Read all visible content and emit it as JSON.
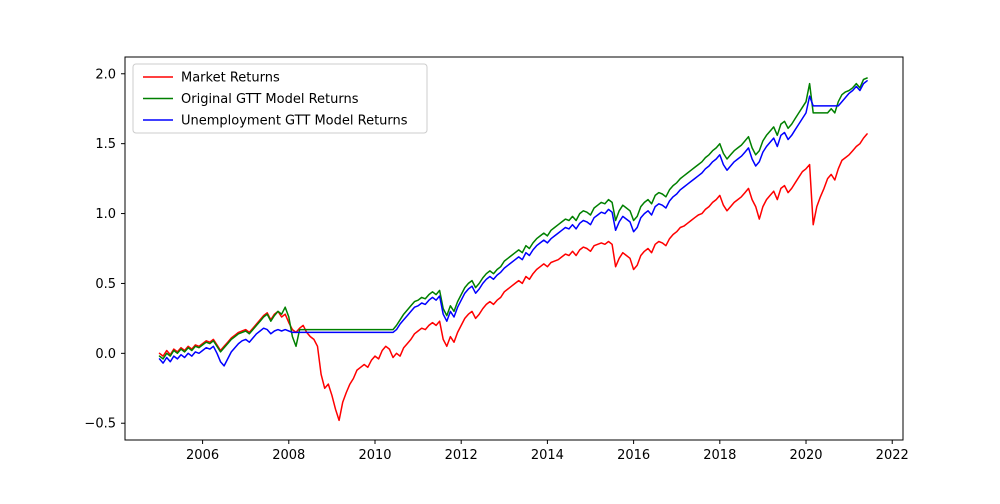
{
  "figure": {
    "background": "#ffffff",
    "axes_edge_color": "#000000",
    "tick_color": "#000000",
    "text_color": "#000000"
  },
  "chart_data": {
    "type": "line",
    "title": "",
    "xlabel": "",
    "ylabel": "",
    "grid": false,
    "xlim": [
      2004.2,
      2022.25
    ],
    "ylim": [
      -0.62,
      2.12
    ],
    "xticks": [
      2006,
      2008,
      2010,
      2012,
      2014,
      2016,
      2018,
      2020,
      2022
    ],
    "x_tick_labels": [
      "2006",
      "2008",
      "2010",
      "2012",
      "2014",
      "2016",
      "2018",
      "2020",
      "2022"
    ],
    "yticks": [
      -0.5,
      0.0,
      0.5,
      1.0,
      1.5,
      2.0
    ],
    "y_tick_labels": [
      "−0.5",
      "0.0",
      "0.5",
      "1.0",
      "1.5",
      "2.0"
    ],
    "legend": {
      "position": "upper-left",
      "background": "#ffffff",
      "border_color": "#cccccc",
      "labels": [
        "Market Returns",
        "Original GTT Model Returns",
        "Unemployment GTT Model Returns"
      ]
    },
    "series": [
      {
        "id": "market-returns",
        "name": "Market Returns",
        "color": "#ff0000",
        "x_start": 2005.0,
        "x_step": 0.0833333,
        "values": [
          0.0,
          -0.02,
          0.02,
          -0.01,
          0.03,
          0.01,
          0.04,
          0.02,
          0.05,
          0.03,
          0.06,
          0.05,
          0.07,
          0.09,
          0.08,
          0.1,
          0.06,
          0.02,
          0.05,
          0.08,
          0.11,
          0.13,
          0.15,
          0.16,
          0.17,
          0.15,
          0.18,
          0.21,
          0.24,
          0.27,
          0.29,
          0.24,
          0.28,
          0.3,
          0.26,
          0.28,
          0.22,
          0.17,
          0.15,
          0.18,
          0.2,
          0.15,
          0.12,
          0.1,
          0.05,
          -0.15,
          -0.25,
          -0.22,
          -0.3,
          -0.4,
          -0.48,
          -0.35,
          -0.28,
          -0.22,
          -0.18,
          -0.12,
          -0.1,
          -0.08,
          -0.1,
          -0.05,
          -0.02,
          -0.04,
          0.02,
          0.05,
          0.03,
          -0.03,
          0.0,
          -0.02,
          0.04,
          0.07,
          0.1,
          0.14,
          0.16,
          0.18,
          0.17,
          0.2,
          0.22,
          0.2,
          0.23,
          0.1,
          0.05,
          0.12,
          0.08,
          0.15,
          0.2,
          0.25,
          0.28,
          0.3,
          0.25,
          0.28,
          0.32,
          0.35,
          0.37,
          0.35,
          0.38,
          0.4,
          0.44,
          0.46,
          0.48,
          0.5,
          0.52,
          0.5,
          0.55,
          0.53,
          0.57,
          0.6,
          0.62,
          0.64,
          0.62,
          0.65,
          0.66,
          0.67,
          0.69,
          0.71,
          0.7,
          0.73,
          0.7,
          0.74,
          0.76,
          0.75,
          0.73,
          0.77,
          0.78,
          0.79,
          0.78,
          0.8,
          0.78,
          0.62,
          0.68,
          0.72,
          0.7,
          0.68,
          0.6,
          0.63,
          0.7,
          0.73,
          0.75,
          0.72,
          0.78,
          0.8,
          0.79,
          0.77,
          0.82,
          0.85,
          0.87,
          0.9,
          0.91,
          0.93,
          0.95,
          0.97,
          0.99,
          1.0,
          1.03,
          1.05,
          1.08,
          1.1,
          1.13,
          1.06,
          1.02,
          1.05,
          1.08,
          1.1,
          1.12,
          1.15,
          1.18,
          1.1,
          1.05,
          0.96,
          1.05,
          1.1,
          1.13,
          1.16,
          1.1,
          1.18,
          1.2,
          1.15,
          1.18,
          1.22,
          1.26,
          1.3,
          1.32,
          1.35,
          0.92,
          1.05,
          1.12,
          1.18,
          1.25,
          1.28,
          1.24,
          1.32,
          1.38,
          1.4,
          1.42,
          1.45,
          1.48,
          1.5,
          1.54,
          1.57
        ]
      },
      {
        "id": "original-gtt",
        "name": "Original GTT Model Returns",
        "color": "#008000",
        "x_start": 2005.0,
        "x_step": 0.0833333,
        "values": [
          -0.02,
          -0.04,
          0.0,
          -0.02,
          0.02,
          0.0,
          0.03,
          0.01,
          0.04,
          0.02,
          0.05,
          0.04,
          0.06,
          0.08,
          0.07,
          0.09,
          0.05,
          0.01,
          0.04,
          0.07,
          0.1,
          0.12,
          0.14,
          0.15,
          0.16,
          0.14,
          0.17,
          0.2,
          0.23,
          0.26,
          0.28,
          0.23,
          0.27,
          0.3,
          0.28,
          0.33,
          0.26,
          0.12,
          0.05,
          0.17,
          0.17,
          0.17,
          0.17,
          0.17,
          0.17,
          0.17,
          0.17,
          0.17,
          0.17,
          0.17,
          0.17,
          0.17,
          0.17,
          0.17,
          0.17,
          0.17,
          0.17,
          0.17,
          0.17,
          0.17,
          0.17,
          0.17,
          0.17,
          0.17,
          0.17,
          0.17,
          0.2,
          0.24,
          0.28,
          0.31,
          0.34,
          0.37,
          0.38,
          0.4,
          0.39,
          0.42,
          0.44,
          0.42,
          0.45,
          0.32,
          0.27,
          0.34,
          0.3,
          0.37,
          0.42,
          0.47,
          0.5,
          0.52,
          0.47,
          0.5,
          0.54,
          0.57,
          0.59,
          0.57,
          0.6,
          0.62,
          0.66,
          0.68,
          0.7,
          0.72,
          0.74,
          0.72,
          0.77,
          0.75,
          0.79,
          0.82,
          0.84,
          0.86,
          0.84,
          0.88,
          0.9,
          0.92,
          0.94,
          0.96,
          0.95,
          0.98,
          0.95,
          1.0,
          1.02,
          1.01,
          0.99,
          1.04,
          1.06,
          1.08,
          1.07,
          1.1,
          1.08,
          0.95,
          1.02,
          1.06,
          1.04,
          1.02,
          0.95,
          0.98,
          1.05,
          1.08,
          1.1,
          1.07,
          1.13,
          1.15,
          1.14,
          1.12,
          1.17,
          1.2,
          1.22,
          1.25,
          1.27,
          1.29,
          1.31,
          1.33,
          1.35,
          1.37,
          1.4,
          1.42,
          1.45,
          1.47,
          1.5,
          1.43,
          1.39,
          1.42,
          1.45,
          1.47,
          1.49,
          1.52,
          1.55,
          1.47,
          1.42,
          1.45,
          1.52,
          1.56,
          1.59,
          1.62,
          1.56,
          1.64,
          1.66,
          1.61,
          1.64,
          1.68,
          1.72,
          1.76,
          1.8,
          1.93,
          1.72,
          1.72,
          1.72,
          1.72,
          1.72,
          1.75,
          1.72,
          1.8,
          1.85,
          1.87,
          1.88,
          1.9,
          1.93,
          1.9,
          1.96,
          1.97
        ]
      },
      {
        "id": "unemployment-gtt",
        "name": "Unemployment GTT Model Returns",
        "color": "#0000ff",
        "x_start": 2005.0,
        "x_step": 0.0833333,
        "values": [
          -0.04,
          -0.07,
          -0.03,
          -0.06,
          -0.02,
          -0.04,
          -0.01,
          -0.03,
          0.0,
          -0.02,
          0.01,
          0.0,
          0.02,
          0.04,
          0.03,
          0.05,
          0.0,
          -0.06,
          -0.09,
          -0.04,
          0.01,
          0.04,
          0.07,
          0.09,
          0.1,
          0.08,
          0.11,
          0.14,
          0.16,
          0.18,
          0.17,
          0.14,
          0.16,
          0.17,
          0.16,
          0.17,
          0.16,
          0.15,
          0.15,
          0.15,
          0.15,
          0.15,
          0.15,
          0.15,
          0.15,
          0.15,
          0.15,
          0.15,
          0.15,
          0.15,
          0.15,
          0.15,
          0.15,
          0.15,
          0.15,
          0.15,
          0.15,
          0.15,
          0.15,
          0.15,
          0.15,
          0.15,
          0.15,
          0.15,
          0.15,
          0.15,
          0.17,
          0.21,
          0.24,
          0.27,
          0.3,
          0.33,
          0.34,
          0.36,
          0.35,
          0.38,
          0.4,
          0.38,
          0.41,
          0.28,
          0.23,
          0.3,
          0.26,
          0.33,
          0.38,
          0.43,
          0.46,
          0.48,
          0.43,
          0.46,
          0.5,
          0.53,
          0.55,
          0.53,
          0.56,
          0.58,
          0.61,
          0.63,
          0.65,
          0.67,
          0.69,
          0.67,
          0.72,
          0.7,
          0.74,
          0.77,
          0.79,
          0.81,
          0.79,
          0.82,
          0.84,
          0.86,
          0.88,
          0.9,
          0.89,
          0.92,
          0.89,
          0.93,
          0.95,
          0.94,
          0.92,
          0.97,
          0.99,
          1.01,
          1.0,
          1.03,
          1.01,
          0.88,
          0.94,
          0.98,
          0.96,
          0.94,
          0.87,
          0.9,
          0.97,
          1.0,
          1.02,
          0.99,
          1.05,
          1.07,
          1.06,
          1.04,
          1.09,
          1.12,
          1.14,
          1.17,
          1.19,
          1.21,
          1.23,
          1.25,
          1.27,
          1.29,
          1.32,
          1.34,
          1.37,
          1.39,
          1.42,
          1.35,
          1.31,
          1.34,
          1.37,
          1.39,
          1.41,
          1.44,
          1.47,
          1.39,
          1.34,
          1.37,
          1.44,
          1.48,
          1.51,
          1.54,
          1.48,
          1.56,
          1.58,
          1.53,
          1.56,
          1.6,
          1.64,
          1.68,
          1.72,
          1.84,
          1.77,
          1.77,
          1.77,
          1.77,
          1.77,
          1.77,
          1.77,
          1.77,
          1.8,
          1.83,
          1.86,
          1.88,
          1.91,
          1.88,
          1.93,
          1.95
        ]
      }
    ]
  }
}
